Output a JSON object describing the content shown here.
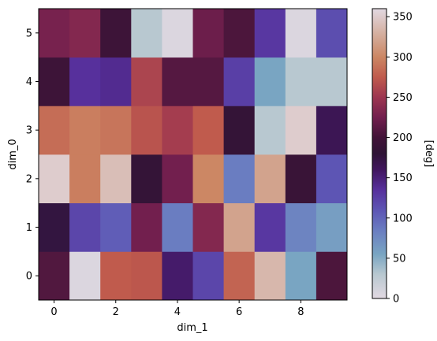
{
  "chart_data": {
    "type": "heatmap",
    "colormap": "twilight",
    "x_label": "dim_1",
    "y_label": "dim_0",
    "x_values": [
      0,
      1,
      2,
      3,
      4,
      5,
      6,
      7,
      8,
      9
    ],
    "y_values": [
      0,
      1,
      2,
      3,
      4,
      5
    ],
    "x_ticks": [
      "0",
      "2",
      "4",
      "6",
      "8"
    ],
    "y_ticks": [
      "0",
      "1",
      "2",
      "3",
      "4",
      "5"
    ],
    "colorbar": {
      "label": "[deg]",
      "range": [
        0,
        360
      ],
      "ticks": [
        "0",
        "50",
        "100",
        "150",
        "200",
        "250",
        "300",
        "350"
      ]
    },
    "rows": [
      {
        "y": 0,
        "values": [
          208,
          5,
          275,
          272,
          155,
          120,
          280,
          335,
          55,
          205
        ]
      },
      {
        "y": 1,
        "values": [
          175,
          120,
          105,
          225,
          85,
          235,
          320,
          130,
          80,
          60
        ]
      },
      {
        "y": 2,
        "values": [
          350,
          295,
          340,
          185,
          225,
          300,
          85,
          320,
          190,
          110
        ]
      },
      {
        "y": 3,
        "values": [
          285,
          295,
          290,
          270,
          255,
          275,
          185,
          30,
          350,
          165
        ]
      },
      {
        "y": 4,
        "values": [
          195,
          135,
          140,
          260,
          210,
          210,
          125,
          55,
          30,
          30
        ]
      },
      {
        "y": 5,
        "values": [
          228,
          235,
          195,
          30,
          5,
          222,
          205,
          130,
          5,
          115
        ]
      }
    ]
  }
}
